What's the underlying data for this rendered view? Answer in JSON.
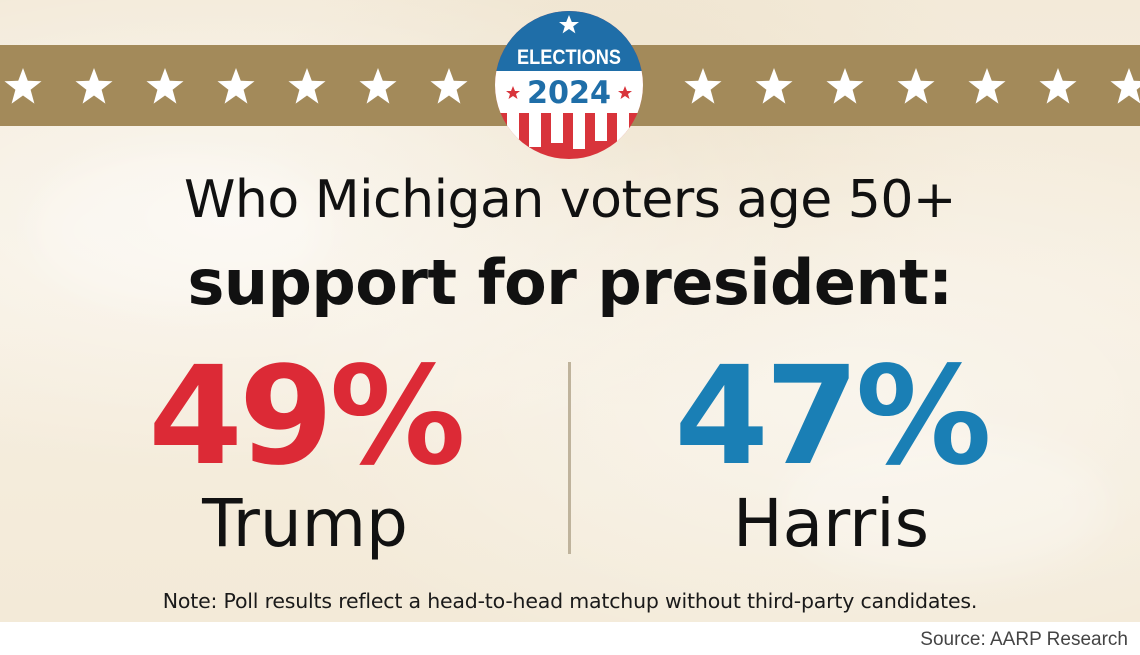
{
  "badge": {
    "line1": "ELECTIONS",
    "line2": "2024",
    "colors": {
      "blue": "#1f6ea8",
      "red": "#d8343b",
      "white": "#ffffff"
    }
  },
  "headline": {
    "line1": "Who Michigan voters age 50+",
    "line2": "support for president:"
  },
  "results": [
    {
      "candidate": "Trump",
      "percent_label": "49%",
      "percent": 49,
      "color": "#dc2a36"
    },
    {
      "candidate": "Harris",
      "percent_label": "47%",
      "percent": 47,
      "color": "#1a7fb5"
    }
  ],
  "note": "Note: Poll results reflect a head-to-head matchup without third-party candidates.",
  "source": "Source: AARP Research",
  "colors": {
    "band": "#a38a5a",
    "star": "#ffffff",
    "background": "#f4ecdc"
  }
}
